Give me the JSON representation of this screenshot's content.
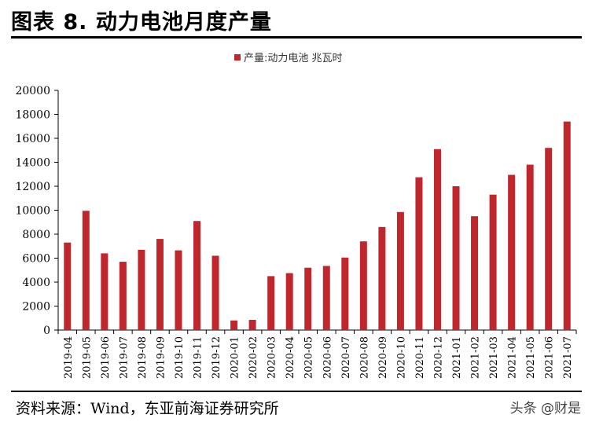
{
  "header": {
    "title": "图表 8.  动力电池月度产量"
  },
  "footer": {
    "source": "资料来源：Wind，东亚前海证券研究所",
    "watermark": "头条 @财是"
  },
  "colors": {
    "bar": "#C0272D",
    "axis": "#000000"
  },
  "chart_data": {
    "type": "bar",
    "title": "",
    "xlabel": "",
    "ylabel": "",
    "ylim": [
      0,
      20000
    ],
    "yticks": [
      0,
      2000,
      4000,
      6000,
      8000,
      10000,
      12000,
      14000,
      16000,
      18000,
      20000
    ],
    "legend_position": "top-center",
    "categories": [
      "2019-04",
      "2019-05",
      "2019-06",
      "2019-07",
      "2019-08",
      "2019-09",
      "2019-10",
      "2019-11",
      "2019-12",
      "2020-01",
      "2020-02",
      "2020-03",
      "2020-04",
      "2020-05",
      "2020-06",
      "2020-07",
      "2020-08",
      "2020-09",
      "2020-10",
      "2020-11",
      "2020-12",
      "2021-01",
      "2021-02",
      "2021-03",
      "2021-04",
      "2021-05",
      "2021-06",
      "2021-07"
    ],
    "series": [
      {
        "name": "产量:动力电池 兆瓦时",
        "values": [
          7300,
          9950,
          6400,
          5700,
          6700,
          7600,
          6650,
          9100,
          6200,
          800,
          850,
          4500,
          4750,
          5200,
          5350,
          6050,
          7400,
          8600,
          9850,
          12750,
          15100,
          12000,
          9500,
          11300,
          12950,
          13800,
          15200,
          17400
        ]
      }
    ]
  }
}
